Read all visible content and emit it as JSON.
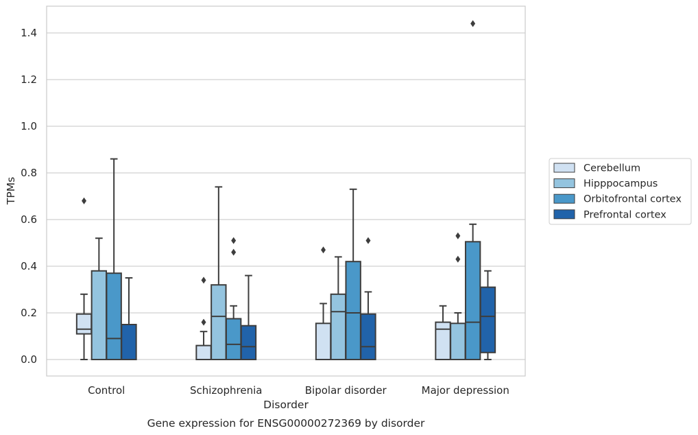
{
  "chart_data": {
    "type": "box",
    "title": "",
    "caption": "Gene expression for ENSG00000272369 by disorder",
    "xlabel": "Disorder",
    "ylabel": "TPMs",
    "ylim": [
      -0.07,
      1.52
    ],
    "yticks": [
      "0.0",
      "0.2",
      "0.4",
      "0.6",
      "0.8",
      "1.0",
      "1.2",
      "1.4"
    ],
    "categories": [
      "Control",
      "Schizophrenia",
      "Bipolar disorder",
      "Major depression"
    ],
    "grid": "horizontal",
    "legend_position": "right",
    "series": [
      {
        "name": "Cerebellum",
        "color": "#d0e1f2",
        "boxes": [
          {
            "whislo": 0.0,
            "q1": 0.11,
            "med": 0.13,
            "q3": 0.195,
            "whishi": 0.28,
            "fliers": [
              0.68
            ]
          },
          {
            "whislo": 0.0,
            "q1": 0.0,
            "med": 0.0,
            "q3": 0.06,
            "whishi": 0.12,
            "fliers": [
              0.16,
              0.34
            ]
          },
          {
            "whislo": 0.0,
            "q1": 0.0,
            "med": 0.0,
            "q3": 0.155,
            "whishi": 0.24,
            "fliers": [
              0.47
            ]
          },
          {
            "whislo": 0.0,
            "q1": 0.0,
            "med": 0.13,
            "q3": 0.16,
            "whishi": 0.23,
            "fliers": []
          }
        ]
      },
      {
        "name": "Hipppocampus",
        "color": "#94c4df",
        "boxes": [
          {
            "whislo": 0.0,
            "q1": 0.0,
            "med": 0.0,
            "q3": 0.38,
            "whishi": 0.52,
            "fliers": []
          },
          {
            "whislo": 0.0,
            "q1": 0.0,
            "med": 0.185,
            "q3": 0.32,
            "whishi": 0.74,
            "fliers": []
          },
          {
            "whislo": 0.0,
            "q1": 0.0,
            "med": 0.205,
            "q3": 0.28,
            "whishi": 0.44,
            "fliers": []
          },
          {
            "whislo": 0.0,
            "q1": 0.0,
            "med": 0.0,
            "q3": 0.155,
            "whishi": 0.2,
            "fliers": [
              0.43,
              0.53
            ]
          }
        ]
      },
      {
        "name": "Orbitofrontal cortex",
        "color": "#4a98c9",
        "boxes": [
          {
            "whislo": 0.0,
            "q1": 0.0,
            "med": 0.09,
            "q3": 0.37,
            "whishi": 0.86,
            "fliers": []
          },
          {
            "whislo": 0.0,
            "q1": 0.0,
            "med": 0.065,
            "q3": 0.175,
            "whishi": 0.23,
            "fliers": [
              0.46,
              0.51
            ]
          },
          {
            "whislo": 0.0,
            "q1": 0.0,
            "med": 0.2,
            "q3": 0.42,
            "whishi": 0.73,
            "fliers": []
          },
          {
            "whislo": 0.0,
            "q1": 0.0,
            "med": 0.16,
            "q3": 0.505,
            "whishi": 0.58,
            "fliers": [
              1.44
            ]
          }
        ]
      },
      {
        "name": "Prefrontal cortex",
        "color": "#2163aa",
        "boxes": [
          {
            "whislo": 0.0,
            "q1": 0.0,
            "med": 0.0,
            "q3": 0.15,
            "whishi": 0.35,
            "fliers": []
          },
          {
            "whislo": 0.0,
            "q1": 0.0,
            "med": 0.055,
            "q3": 0.145,
            "whishi": 0.36,
            "fliers": []
          },
          {
            "whislo": 0.0,
            "q1": 0.0,
            "med": 0.055,
            "q3": 0.195,
            "whishi": 0.29,
            "fliers": [
              0.51
            ]
          },
          {
            "whislo": 0.0,
            "q1": 0.03,
            "med": 0.185,
            "q3": 0.31,
            "whishi": 0.38,
            "fliers": []
          }
        ]
      }
    ]
  }
}
